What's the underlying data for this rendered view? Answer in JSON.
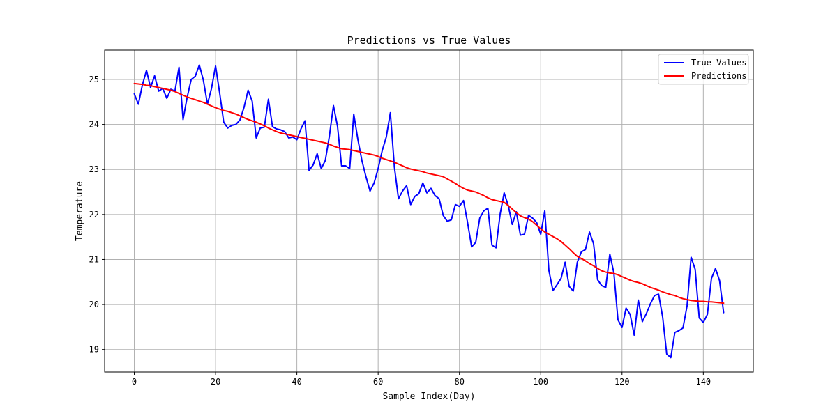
{
  "chart_data": {
    "type": "line",
    "title": "Predictions vs True Values",
    "xlabel": "Sample Index(Day)",
    "ylabel": "Temperature",
    "xlim": [
      -7.3,
      152.3
    ],
    "ylim": [
      18.5,
      25.65
    ],
    "x_ticks": [
      0,
      20,
      40,
      60,
      80,
      100,
      120,
      140
    ],
    "y_ticks": [
      19,
      20,
      21,
      22,
      23,
      24,
      25
    ],
    "x_tick_labels": [
      "0",
      "20",
      "40",
      "60",
      "80",
      "100",
      "120",
      "140"
    ],
    "y_tick_labels": [
      "19",
      "20",
      "21",
      "22",
      "23",
      "24",
      "25"
    ],
    "grid": true,
    "legend_position": "top-right",
    "series": [
      {
        "name": "True Values",
        "color": "#0000ff",
        "x": [
          0,
          1,
          2,
          3,
          4,
          5,
          6,
          7,
          8,
          9,
          10,
          11,
          12,
          13,
          14,
          15,
          16,
          17,
          18,
          19,
          20,
          21,
          22,
          23,
          24,
          25,
          26,
          27,
          28,
          29,
          30,
          31,
          32,
          33,
          34,
          35,
          36,
          37,
          38,
          39,
          40,
          41,
          42,
          43,
          44,
          45,
          46,
          47,
          48,
          49,
          50,
          51,
          52,
          53,
          54,
          55,
          56,
          57,
          58,
          59,
          60,
          61,
          62,
          63,
          64,
          65,
          66,
          67,
          68,
          69,
          70,
          71,
          72,
          73,
          74,
          75,
          76,
          77,
          78,
          79,
          80,
          81,
          82,
          83,
          84,
          85,
          86,
          87,
          88,
          89,
          90,
          91,
          92,
          93,
          94,
          95,
          96,
          97,
          98,
          99,
          100,
          101,
          102,
          103,
          104,
          105,
          106,
          107,
          108,
          109,
          110,
          111,
          112,
          113,
          114,
          115,
          116,
          117,
          118,
          119,
          120,
          121,
          122,
          123,
          124,
          125,
          126,
          127,
          128,
          129,
          130,
          131,
          132,
          133,
          134,
          135,
          136,
          137,
          138,
          139,
          140,
          141,
          142,
          143,
          144,
          145
        ],
        "values": [
          24.68,
          24.45,
          24.88,
          25.2,
          24.82,
          25.08,
          24.74,
          24.8,
          24.58,
          24.78,
          24.74,
          25.27,
          24.11,
          24.6,
          25.0,
          25.07,
          25.32,
          24.98,
          24.45,
          24.8,
          25.3,
          24.7,
          24.05,
          23.92,
          23.98,
          24.0,
          24.1,
          24.38,
          24.76,
          24.52,
          23.7,
          23.92,
          23.94,
          24.56,
          23.95,
          23.9,
          23.88,
          23.84,
          23.7,
          23.72,
          23.66,
          23.9,
          24.08,
          22.98,
          23.1,
          23.35,
          23.02,
          23.2,
          23.74,
          24.42,
          23.96,
          23.08,
          23.08,
          23.02,
          24.23,
          23.67,
          23.2,
          22.84,
          22.52,
          22.7,
          23.02,
          23.42,
          23.72,
          24.26,
          23.05,
          22.35,
          22.52,
          22.64,
          22.22,
          22.4,
          22.46,
          22.7,
          22.48,
          22.58,
          22.42,
          22.35,
          21.98,
          21.85,
          21.88,
          22.22,
          22.18,
          22.31,
          21.82,
          21.28,
          21.38,
          21.92,
          22.08,
          22.14,
          21.32,
          21.26,
          22.0,
          22.48,
          22.2,
          21.78,
          22.06,
          21.54,
          21.56,
          21.98,
          21.92,
          21.82,
          21.56,
          22.08,
          20.76,
          20.31,
          20.44,
          20.58,
          20.94,
          20.4,
          20.3,
          20.94,
          21.17,
          21.22,
          21.61,
          21.35,
          20.55,
          20.42,
          20.38,
          21.12,
          20.7,
          19.66,
          19.49,
          19.92,
          19.78,
          19.32,
          20.1,
          19.62,
          19.8,
          20.02,
          20.2,
          20.23,
          19.72,
          18.9,
          18.82,
          19.38,
          19.42,
          19.48,
          19.97,
          21.05,
          20.78,
          19.7,
          19.6,
          19.78,
          20.58,
          20.8,
          20.53,
          19.82
        ]
      },
      {
        "name": "Predictions",
        "color": "#ff0000",
        "x": [
          0,
          1,
          2,
          3,
          4,
          5,
          6,
          7,
          8,
          9,
          10,
          11,
          12,
          13,
          14,
          15,
          16,
          17,
          18,
          19,
          20,
          21,
          22,
          23,
          24,
          25,
          26,
          27,
          28,
          29,
          30,
          31,
          32,
          33,
          34,
          35,
          36,
          37,
          38,
          39,
          40,
          41,
          42,
          43,
          44,
          45,
          46,
          47,
          48,
          49,
          50,
          51,
          52,
          53,
          54,
          55,
          56,
          57,
          58,
          59,
          60,
          61,
          62,
          63,
          64,
          65,
          66,
          67,
          68,
          69,
          70,
          71,
          72,
          73,
          74,
          75,
          76,
          77,
          78,
          79,
          80,
          81,
          82,
          83,
          84,
          85,
          86,
          87,
          88,
          89,
          90,
          91,
          92,
          93,
          94,
          95,
          96,
          97,
          98,
          99,
          100,
          101,
          102,
          103,
          104,
          105,
          106,
          107,
          108,
          109,
          110,
          111,
          112,
          113,
          114,
          115,
          116,
          117,
          118,
          119,
          120,
          121,
          122,
          123,
          124,
          125,
          126,
          127,
          128,
          129,
          130,
          131,
          132,
          133,
          134,
          135,
          136,
          137,
          138,
          139,
          140,
          141,
          142,
          143,
          144,
          145
        ],
        "values": [
          24.91,
          24.9,
          24.89,
          24.87,
          24.86,
          24.84,
          24.82,
          24.8,
          24.78,
          24.76,
          24.73,
          24.69,
          24.65,
          24.61,
          24.58,
          24.55,
          24.52,
          24.49,
          24.45,
          24.41,
          24.37,
          24.34,
          24.31,
          24.29,
          24.26,
          24.23,
          24.19,
          24.15,
          24.11,
          24.08,
          24.05,
          24.01,
          23.97,
          23.92,
          23.88,
          23.84,
          23.81,
          23.79,
          23.77,
          23.75,
          23.73,
          23.71,
          23.69,
          23.67,
          23.65,
          23.63,
          23.61,
          23.59,
          23.56,
          23.52,
          23.49,
          23.46,
          23.45,
          23.44,
          23.42,
          23.4,
          23.38,
          23.36,
          23.34,
          23.32,
          23.29,
          23.25,
          23.22,
          23.19,
          23.16,
          23.12,
          23.08,
          23.04,
          23.01,
          22.99,
          22.97,
          22.95,
          22.92,
          22.9,
          22.88,
          22.86,
          22.84,
          22.79,
          22.74,
          22.69,
          22.63,
          22.58,
          22.54,
          22.52,
          22.5,
          22.46,
          22.42,
          22.37,
          22.33,
          22.31,
          22.29,
          22.27,
          22.2,
          22.12,
          22.04,
          21.97,
          21.93,
          21.9,
          21.84,
          21.76,
          21.68,
          21.61,
          21.56,
          21.51,
          21.46,
          21.4,
          21.32,
          21.24,
          21.15,
          21.07,
          21.02,
          20.97,
          20.91,
          20.86,
          20.8,
          20.75,
          20.72,
          20.7,
          20.69,
          20.66,
          20.62,
          20.58,
          20.54,
          20.51,
          20.49,
          20.46,
          20.42,
          20.38,
          20.35,
          20.32,
          20.28,
          20.25,
          20.22,
          20.2,
          20.16,
          20.13,
          20.11,
          20.09,
          20.08,
          20.07,
          20.07,
          20.06,
          20.06,
          20.05,
          20.04,
          20.03
        ]
      }
    ]
  }
}
